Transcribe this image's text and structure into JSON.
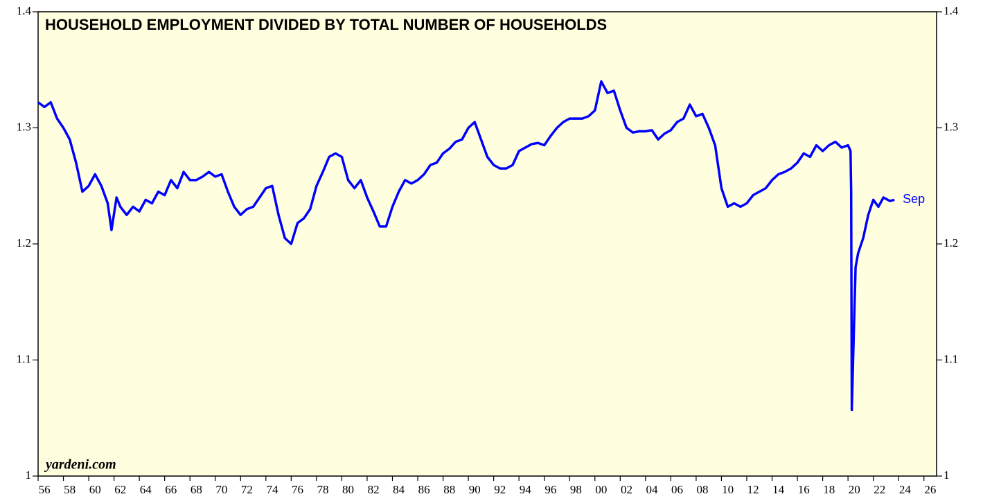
{
  "chart_data": {
    "type": "line",
    "title": "HOUSEHOLD EMPLOYMENT DIVIDED BY TOTAL NUMBER OF HOUSEHOLDS",
    "annotations": [
      "yardeni.com",
      "Sep"
    ],
    "x": [
      1956,
      1956.5,
      1957,
      1957.5,
      1958,
      1958.5,
      1959,
      1959.5,
      1960,
      1960.5,
      1961,
      1961.5,
      1961.8,
      1962.2,
      1962.5,
      1963,
      1963.5,
      1964,
      1964.5,
      1965,
      1965.5,
      1966,
      1966.5,
      1967,
      1967.5,
      1968,
      1968.5,
      1969,
      1969.5,
      1970,
      1970.5,
      1971,
      1971.5,
      1972,
      1972.5,
      1973,
      1973.5,
      1974,
      1974.5,
      1975,
      1975.5,
      1976,
      1976.5,
      1977,
      1977.5,
      1978,
      1978.5,
      1979,
      1979.5,
      1980,
      1980.5,
      1981,
      1981.5,
      1982,
      1982.5,
      1983,
      1983.5,
      1984,
      1984.5,
      1985,
      1985.5,
      1986,
      1986.5,
      1987,
      1987.5,
      1988,
      1988.5,
      1989,
      1989.5,
      1990,
      1990.5,
      1991,
      1991.5,
      1992,
      1992.5,
      1993,
      1993.5,
      1994,
      1994.5,
      1995,
      1995.5,
      1996,
      1996.5,
      1997,
      1997.5,
      1998,
      1998.5,
      1999,
      1999.5,
      2000,
      2000.5,
      2001,
      2001.5,
      2002,
      2002.5,
      2003,
      2003.5,
      2004,
      2004.5,
      2005,
      2005.5,
      2006,
      2006.5,
      2007,
      2007.5,
      2008,
      2008.5,
      2009,
      2009.5,
      2010,
      2010.5,
      2011,
      2011.5,
      2012,
      2012.5,
      2013,
      2013.5,
      2014,
      2014.5,
      2015,
      2015.5,
      2016,
      2016.5,
      2017,
      2017.5,
      2018,
      2018.5,
      2019,
      2019.5,
      2020,
      2020.2,
      2020.25,
      2020.3,
      2020.45,
      2020.6,
      2020.8,
      2021.2,
      2021.6,
      2022,
      2022.4,
      2022.8,
      2023.3,
      2023.67
    ],
    "series": [
      {
        "name": "Household employment / households",
        "color": "#0000ff",
        "values": [
          1.322,
          1.318,
          1.322,
          1.308,
          1.3,
          1.29,
          1.27,
          1.245,
          1.25,
          1.26,
          1.25,
          1.235,
          1.212,
          1.24,
          1.232,
          1.225,
          1.232,
          1.228,
          1.238,
          1.235,
          1.245,
          1.242,
          1.255,
          1.248,
          1.262,
          1.255,
          1.255,
          1.258,
          1.262,
          1.258,
          1.26,
          1.245,
          1.232,
          1.225,
          1.23,
          1.232,
          1.24,
          1.248,
          1.25,
          1.225,
          1.205,
          1.2,
          1.218,
          1.222,
          1.23,
          1.25,
          1.262,
          1.275,
          1.278,
          1.275,
          1.255,
          1.248,
          1.255,
          1.24,
          1.228,
          1.215,
          1.215,
          1.232,
          1.245,
          1.255,
          1.252,
          1.255,
          1.26,
          1.268,
          1.27,
          1.278,
          1.282,
          1.288,
          1.29,
          1.3,
          1.305,
          1.29,
          1.275,
          1.268,
          1.265,
          1.265,
          1.268,
          1.28,
          1.283,
          1.286,
          1.287,
          1.285,
          1.293,
          1.3,
          1.305,
          1.308,
          1.308,
          1.308,
          1.31,
          1.315,
          1.34,
          1.33,
          1.332,
          1.315,
          1.3,
          1.296,
          1.297,
          1.297,
          1.298,
          1.29,
          1.295,
          1.298,
          1.305,
          1.308,
          1.32,
          1.31,
          1.312,
          1.3,
          1.285,
          1.248,
          1.232,
          1.235,
          1.232,
          1.235,
          1.242,
          1.245,
          1.248,
          1.255,
          1.26,
          1.262,
          1.265,
          1.27,
          1.278,
          1.275,
          1.285,
          1.28,
          1.285,
          1.288,
          1.283,
          1.285,
          1.28,
          1.245,
          1.057,
          1.12,
          1.18,
          1.192,
          1.205,
          1.225,
          1.238,
          1.232,
          1.24,
          1.237,
          1.238
        ]
      }
    ],
    "xlim": [
      1956,
      2027
    ],
    "xticks": [
      {
        "value": 1956,
        "label": "56"
      },
      {
        "value": 1958,
        "label": "58"
      },
      {
        "value": 1960,
        "label": "60"
      },
      {
        "value": 1962,
        "label": "62"
      },
      {
        "value": 1964,
        "label": "64"
      },
      {
        "value": 1966,
        "label": "66"
      },
      {
        "value": 1968,
        "label": "68"
      },
      {
        "value": 1970,
        "label": "70"
      },
      {
        "value": 1972,
        "label": "72"
      },
      {
        "value": 1974,
        "label": "74"
      },
      {
        "value": 1976,
        "label": "76"
      },
      {
        "value": 1978,
        "label": "78"
      },
      {
        "value": 1980,
        "label": "80"
      },
      {
        "value": 1982,
        "label": "82"
      },
      {
        "value": 1984,
        "label": "84"
      },
      {
        "value": 1986,
        "label": "86"
      },
      {
        "value": 1988,
        "label": "88"
      },
      {
        "value": 1990,
        "label": "90"
      },
      {
        "value": 1992,
        "label": "92"
      },
      {
        "value": 1994,
        "label": "94"
      },
      {
        "value": 1996,
        "label": "96"
      },
      {
        "value": 1998,
        "label": "98"
      },
      {
        "value": 2000,
        "label": "00"
      },
      {
        "value": 2002,
        "label": "02"
      },
      {
        "value": 2004,
        "label": "04"
      },
      {
        "value": 2006,
        "label": "06"
      },
      {
        "value": 2008,
        "label": "08"
      },
      {
        "value": 2010,
        "label": "10"
      },
      {
        "value": 2012,
        "label": "12"
      },
      {
        "value": 2014,
        "label": "14"
      },
      {
        "value": 2016,
        "label": "16"
      },
      {
        "value": 2018,
        "label": "18"
      },
      {
        "value": 2020,
        "label": "20"
      },
      {
        "value": 2022,
        "label": "22"
      },
      {
        "value": 2024,
        "label": "24"
      },
      {
        "value": 2026,
        "label": "26"
      }
    ],
    "ylim": [
      1.0,
      1.4
    ],
    "yticks": [
      1.0,
      1.1,
      1.2,
      1.3,
      1.4
    ],
    "grid": false
  }
}
